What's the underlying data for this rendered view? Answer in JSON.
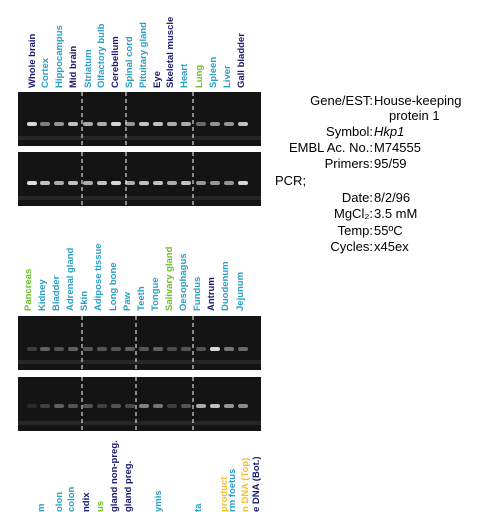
{
  "panel_top": {
    "lanes": [
      {
        "label": "Whole brain",
        "color": "#1a1a6e"
      },
      {
        "label": "Cortex",
        "color": "#2a9fc4"
      },
      {
        "label": "Hippocampus",
        "color": "#2a9fc4"
      },
      {
        "label": "Mid brain",
        "color": "#1a1a6e"
      },
      {
        "label": "Striatum",
        "color": "#2a9fc4"
      },
      {
        "label": "Olfactory bulb",
        "color": "#2a9fc4"
      },
      {
        "label": "Cerebellum",
        "color": "#1a1a6e"
      },
      {
        "label": "Spinal cord",
        "color": "#2a9fc4"
      },
      {
        "label": "Pituitary gland",
        "color": "#2a9fc4"
      },
      {
        "label": "Eye",
        "color": "#1a1a6e"
      },
      {
        "label": "Skeletal muscle",
        "color": "#1a1a6e"
      },
      {
        "label": "Heart",
        "color": "#2a9fc4"
      },
      {
        "label": "Lung",
        "color": "#6cbf2a"
      },
      {
        "label": "Spleen",
        "color": "#2a9fc4"
      },
      {
        "label": "Liver",
        "color": "#2a9fc4"
      },
      {
        "label": "Gall bladder",
        "color": "#1a1a6e"
      }
    ]
  },
  "panel_middle": {
    "lanes": [
      {
        "label": "Pancreas",
        "color": "#6cbf2a"
      },
      {
        "label": "Kidney",
        "color": "#2a9fc4"
      },
      {
        "label": "Bladder",
        "color": "#2a9fc4"
      },
      {
        "label": "Adrenal gland",
        "color": "#2a9fc4"
      },
      {
        "label": "Skin",
        "color": "#2a9fc4"
      },
      {
        "label": "Adipose tissue",
        "color": "#2a9fc4"
      },
      {
        "label": "Long bone",
        "color": "#2a9fc4"
      },
      {
        "label": "Paw",
        "color": "#2a9fc4"
      },
      {
        "label": "Teeth",
        "color": "#2a9fc4"
      },
      {
        "label": "Tongue",
        "color": "#2a9fc4"
      },
      {
        "label": "Salivary gland",
        "color": "#6cbf2a"
      },
      {
        "label": "Oesophagus",
        "color": "#2a9fc4"
      },
      {
        "label": "Fundus",
        "color": "#2a9fc4"
      },
      {
        "label": "Antrum",
        "color": "#1a1a6e"
      },
      {
        "label": "Duodenum",
        "color": "#2a9fc4"
      },
      {
        "label": "Jejunum",
        "color": "#2a9fc4"
      }
    ]
  },
  "panel_bottom": {
    "lanes": [
      {
        "label": "m",
        "color": "#2a9fc4"
      },
      {
        "label": "olon",
        "color": "#2a9fc4"
      },
      {
        "label": "colon",
        "color": "#2a9fc4"
      },
      {
        "label": "ndix",
        "color": "#1a1a6e"
      },
      {
        "label": "us",
        "color": "#6cbf2a"
      },
      {
        "label": "gland non-preg.",
        "color": "#1a1a6e"
      },
      {
        "label": "gland preg.",
        "color": "#1a1a6e"
      },
      {
        "label": "ymis",
        "color": "#2a9fc4"
      },
      {
        "label": "ta",
        "color": "#2a9fc4"
      },
      {
        "label": "rm foetus",
        "color": "#2a9fc4"
      },
      {
        "label": "product",
        "color": "#f0c030"
      },
      {
        "label": "n DNA (Top)",
        "color": "#f0c030"
      },
      {
        "label": "e DNA (Bot.)",
        "color": "#1a1a6e"
      }
    ]
  },
  "info": {
    "gene_label": "Gene/EST:",
    "gene_value_1": "House-keeping",
    "gene_value_2": "protein 1",
    "symbol_label": "Symbol:",
    "symbol_value": "Hkp1",
    "embl_label": "EMBL Ac. No.:",
    "embl_value": "M74555",
    "primers_label": "Primers:",
    "primers_value": "95/59",
    "pcr_label": "PCR;",
    "date_label": "Date:",
    "date_value": "8/2/96",
    "mgcl_label": "MgCl₂:",
    "mgcl_value": "3.5 mM",
    "temp_label": "Temp:",
    "temp_value": "55ºC",
    "cycles_label": "Cycles:",
    "cycles_value": "x45ex"
  }
}
